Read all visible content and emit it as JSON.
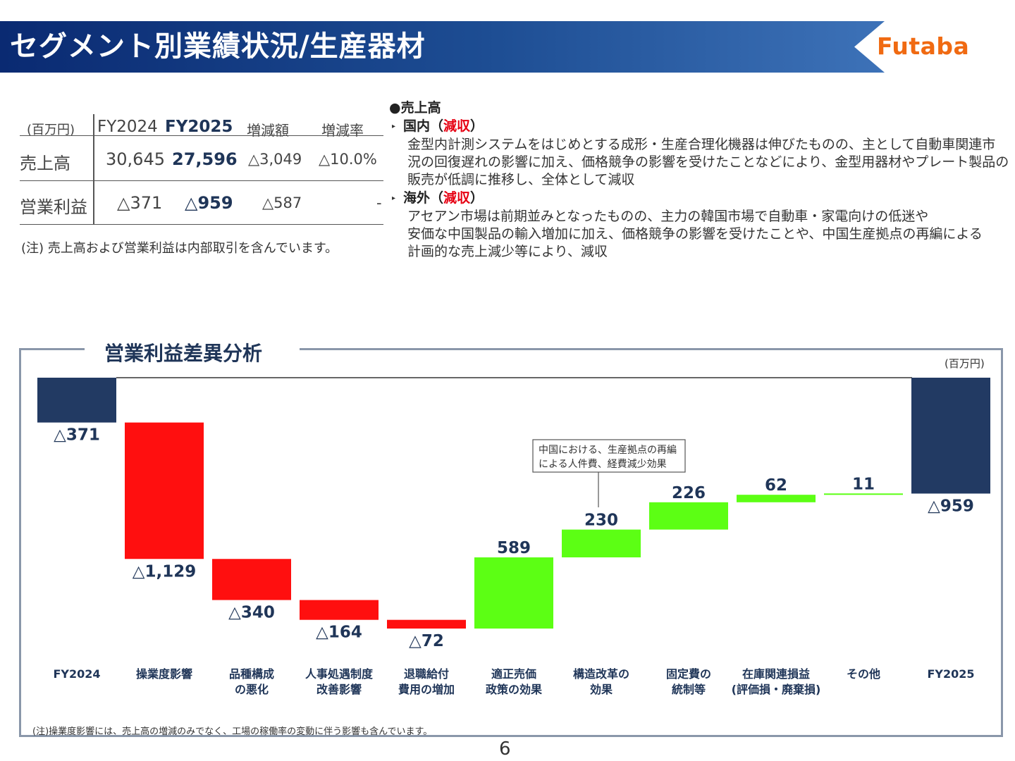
{
  "header": {
    "title": "セグメント別業績状況/生産器材",
    "logo": "Futaba"
  },
  "summary_table": {
    "headers": [
      "(百万円)",
      "FY2024",
      "FY2025",
      "増減額",
      "増減率"
    ],
    "rows": [
      {
        "label": "売上高",
        "fy2024": "30,645",
        "fy2025": "27,596",
        "change": "△3,049",
        "rate": "△10.0%"
      },
      {
        "label": "営業利益",
        "fy2024": "△371",
        "fy2025": "△959",
        "change": "△587",
        "rate": "-"
      }
    ],
    "note": "(注) 売上高および営業利益は内部取引を含んでいます。"
  },
  "commentary": {
    "heading": "●売上高",
    "domestic": {
      "label": "国内（",
      "status": "減収",
      "close": "）",
      "lines": [
        "金型内計測システムをはじめとする成形・生産合理化機器は伸びたものの、主として自動車関連市",
        "況の回復遅れの影響に加え、価格競争の影響を受けたことなどにより、金型用器材やプレート製品の",
        "販売が低調に推移し、全体として減収"
      ]
    },
    "overseas": {
      "label": "海外（",
      "status": "減収",
      "close": "）",
      "lines": [
        "アセアン市場は前期並みとなったものの、主力の韓国市場で自動車・家電向けの低迷や",
        "安価な中国製品の輸入増加に加え、価格競争の影響を受けたことや、中国生産拠点の再編による",
        "計画的な売上減少等により、減収"
      ]
    }
  },
  "chart_section": {
    "title": "営業利益差異分析",
    "unit": "(百万円)",
    "callout": [
      "中国における、生産拠点の再編",
      "による人件費、経費減少効果"
    ],
    "footnote": "(注)操業度影響には、売上高の増減のみでなく、工場の稼働率の変動に伴う影響も含んでいます。",
    "page_number": "6"
  },
  "chart_data": {
    "type": "bar",
    "subtype": "waterfall",
    "categories": [
      [
        "FY2024"
      ],
      [
        "操業度影響"
      ],
      [
        "品種構成",
        "の悪化"
      ],
      [
        "人事処遇制度",
        "改善影響"
      ],
      [
        "退職給付",
        "費用の増加"
      ],
      [
        "適正売価",
        "政策の効果"
      ],
      [
        "構造改革の",
        "効果"
      ],
      [
        "固定費の",
        "統制等"
      ],
      [
        "在庫関連損益",
        "(評価損・廃棄損)"
      ],
      [
        "その他"
      ],
      [
        "FY2025"
      ]
    ],
    "values": [
      -371,
      -1129,
      -340,
      -164,
      -72,
      589,
      230,
      226,
      62,
      11,
      -959
    ],
    "labels": [
      "△371",
      "△1,129",
      "△340",
      "△164",
      "△72",
      "589",
      "230",
      "226",
      "62",
      "11",
      "△959"
    ],
    "kinds": [
      "total",
      "delta",
      "delta",
      "delta",
      "delta",
      "delta",
      "delta",
      "delta",
      "delta",
      "delta",
      "total"
    ],
    "colors": {
      "total": "#223a63",
      "decrease": "#ff0f0f",
      "increase": "#5cff14",
      "label": "#1f3558"
    }
  }
}
